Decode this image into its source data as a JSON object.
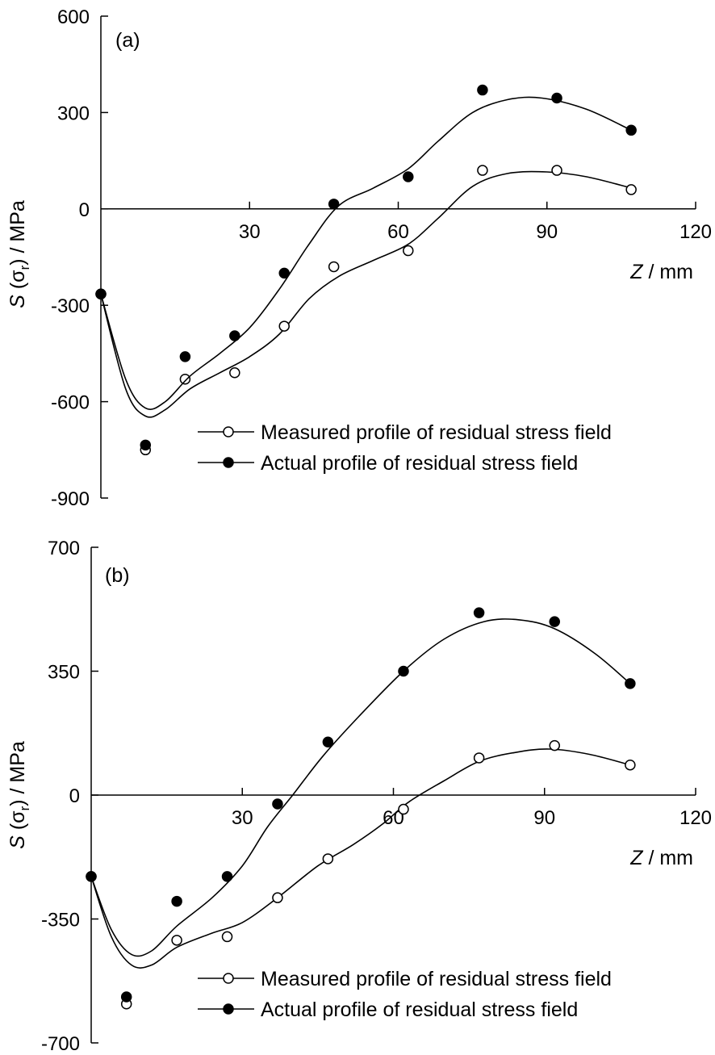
{
  "chart_data": [
    {
      "type": "scatter",
      "panel_label": "(a)",
      "xlabel": "Z / mm",
      "xlabel_var": "Z",
      "xlabel_rest": " / mm",
      "ylabel": "S(σr) / MPa",
      "xlim": [
        0,
        120
      ],
      "ylim": [
        -900,
        600
      ],
      "xticks": [
        "30",
        "60",
        "90",
        "120"
      ],
      "yticks": [
        "600",
        "300",
        "0",
        "-300",
        "-600",
        "-900"
      ],
      "grid": false,
      "legend_position": "bottom-right",
      "series": [
        {
          "name": "Measured profile of residual stress field",
          "marker": "open-circle",
          "points": [
            [
              0,
              -265
            ],
            [
              9,
              -750
            ],
            [
              17,
              -530
            ],
            [
              27,
              -510
            ],
            [
              37,
              -365
            ],
            [
              47,
              -180
            ],
            [
              62,
              -130
            ],
            [
              77,
              120
            ],
            [
              92,
              120
            ],
            [
              107,
              60
            ]
          ],
          "fit": [
            [
              0,
              -265
            ],
            [
              5,
              -560
            ],
            [
              9,
              -645
            ],
            [
              13,
              -625
            ],
            [
              18,
              -560
            ],
            [
              24,
              -510
            ],
            [
              30,
              -460
            ],
            [
              36,
              -390
            ],
            [
              42,
              -280
            ],
            [
              48,
              -210
            ],
            [
              55,
              -160
            ],
            [
              62,
              -110
            ],
            [
              68,
              -30
            ],
            [
              75,
              70
            ],
            [
              82,
              110
            ],
            [
              90,
              115
            ],
            [
              98,
              100
            ],
            [
              107,
              65
            ]
          ]
        },
        {
          "name": "Actual profile of residual stress field",
          "marker": "filled-circle",
          "points": [
            [
              0,
              -265
            ],
            [
              9,
              -735
            ],
            [
              17,
              -460
            ],
            [
              27,
              -395
            ],
            [
              37,
              -200
            ],
            [
              47,
              15
            ],
            [
              62,
              100
            ],
            [
              77,
              370
            ],
            [
              92,
              345
            ],
            [
              107,
              245
            ]
          ],
          "fit": [
            [
              0,
              -265
            ],
            [
              5,
              -530
            ],
            [
              9,
              -620
            ],
            [
              13,
              -600
            ],
            [
              18,
              -520
            ],
            [
              24,
              -450
            ],
            [
              30,
              -370
            ],
            [
              36,
              -250
            ],
            [
              42,
              -110
            ],
            [
              48,
              10
            ],
            [
              55,
              65
            ],
            [
              62,
              125
            ],
            [
              68,
              210
            ],
            [
              75,
              300
            ],
            [
              82,
              340
            ],
            [
              89,
              345
            ],
            [
              98,
              310
            ],
            [
              107,
              245
            ]
          ]
        }
      ]
    },
    {
      "type": "scatter",
      "panel_label": "(b)",
      "xlabel": "Z / mm",
      "xlabel_var": "Z",
      "xlabel_rest": " / mm",
      "ylabel": "S(σr) / MPa",
      "xlim": [
        0,
        120
      ],
      "ylim": [
        -700,
        700
      ],
      "xticks": [
        "30",
        "60",
        "90",
        "120"
      ],
      "yticks": [
        "700",
        "350",
        "0",
        "-350",
        "-700"
      ],
      "grid": false,
      "legend_position": "bottom-right",
      "series": [
        {
          "name": "Measured profile of residual stress field",
          "marker": "open-circle",
          "points": [
            [
              0,
              -230
            ],
            [
              7,
              -590
            ],
            [
              17,
              -410
            ],
            [
              27,
              -400
            ],
            [
              37,
              -290
            ],
            [
              47,
              -180
            ],
            [
              62,
              -40
            ],
            [
              77,
              105
            ],
            [
              92,
              140
            ],
            [
              107,
              85
            ]
          ],
          "fit": [
            [
              0,
              -230
            ],
            [
              4,
              -400
            ],
            [
              8,
              -480
            ],
            [
              12,
              -480
            ],
            [
              17,
              -430
            ],
            [
              24,
              -390
            ],
            [
              30,
              -360
            ],
            [
              37,
              -290
            ],
            [
              45,
              -200
            ],
            [
              52,
              -140
            ],
            [
              58,
              -80
            ],
            [
              63,
              -20
            ],
            [
              70,
              40
            ],
            [
              77,
              95
            ],
            [
              84,
              120
            ],
            [
              91,
              130
            ],
            [
              99,
              115
            ],
            [
              107,
              85
            ]
          ]
        },
        {
          "name": "Actual profile of residual stress field",
          "marker": "filled-circle",
          "points": [
            [
              0,
              -230
            ],
            [
              7,
              -570
            ],
            [
              17,
              -300
            ],
            [
              27,
              -230
            ],
            [
              37,
              -25
            ],
            [
              47,
              150
            ],
            [
              62,
              350
            ],
            [
              77,
              515
            ],
            [
              92,
              490
            ],
            [
              107,
              315
            ]
          ],
          "fit": [
            [
              0,
              -230
            ],
            [
              4,
              -380
            ],
            [
              8,
              -450
            ],
            [
              12,
              -440
            ],
            [
              17,
              -370
            ],
            [
              24,
              -290
            ],
            [
              30,
              -200
            ],
            [
              35,
              -90
            ],
            [
              40,
              0
            ],
            [
              46,
              110
            ],
            [
              53,
              220
            ],
            [
              62,
              350
            ],
            [
              70,
              440
            ],
            [
              78,
              490
            ],
            [
              85,
              495
            ],
            [
              92,
              470
            ],
            [
              100,
              400
            ],
            [
              107,
              315
            ]
          ]
        }
      ]
    }
  ]
}
